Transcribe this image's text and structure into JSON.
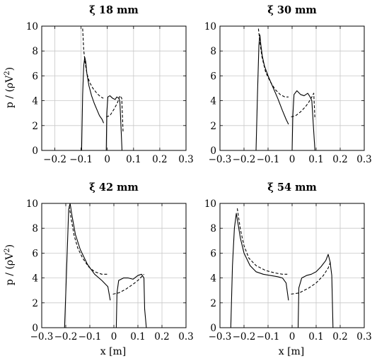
{
  "figure": {
    "ylabel_main": "p / (ρV",
    "ylabel_sup": "2",
    "ylabel_close": ")",
    "xlabel": "x [m]"
  },
  "chart_data": [
    {
      "type": "line",
      "title": "ξ 18 mm",
      "xlim": [
        -0.25,
        0.3
      ],
      "ylim": [
        0,
        10
      ],
      "xticks": [
        -0.2,
        -0.1,
        0,
        0.1,
        0.2,
        0.3
      ],
      "xtick_labels": [
        "−0.2",
        "−0.1",
        "0",
        "0.1",
        "0.2",
        "0.3"
      ],
      "yticks": [
        0,
        2,
        4,
        6,
        8,
        10
      ],
      "ytick_labels": [
        "0",
        "2",
        "4",
        "6",
        "8",
        "10"
      ],
      "grid": true,
      "series": [
        {
          "style": "solid",
          "segments": [
            [
              [
                -0.098,
                0
              ],
              [
                -0.094,
                4.5
              ],
              [
                -0.09,
                6.8
              ],
              [
                -0.086,
                7.5
              ],
              [
                -0.082,
                7.1
              ],
              [
                -0.078,
                6.2
              ],
              [
                -0.07,
                5.2
              ],
              [
                -0.06,
                4.4
              ],
              [
                -0.05,
                3.8
              ],
              [
                -0.04,
                3.3
              ],
              [
                -0.03,
                2.8
              ],
              [
                -0.02,
                2.5
              ],
              [
                -0.014,
                2.2
              ]
            ],
            [
              [
                -0.004,
                0
              ],
              [
                -0.002,
                3.0
              ],
              [
                0.002,
                4.3
              ],
              [
                0.01,
                4.4
              ],
              [
                0.02,
                4.2
              ],
              [
                0.03,
                4.1
              ],
              [
                0.036,
                4.3
              ],
              [
                0.044,
                4.2
              ],
              [
                0.048,
                3.9
              ],
              [
                0.052,
                2.0
              ],
              [
                0.056,
                0
              ]
            ]
          ]
        },
        {
          "style": "dashed",
          "segments": [
            [
              [
                -0.094,
                9.8
              ],
              [
                -0.09,
                8.1
              ],
              [
                -0.085,
                7.1
              ],
              [
                -0.078,
                6.2
              ],
              [
                -0.068,
                5.5
              ],
              [
                -0.055,
                5.0
              ],
              [
                -0.04,
                4.6
              ],
              [
                -0.025,
                4.3
              ],
              [
                -0.015,
                4.2
              ]
            ],
            [
              [
                -0.004,
                2.7
              ],
              [
                0.01,
                2.8
              ],
              [
                0.025,
                3.3
              ],
              [
                0.038,
                3.8
              ],
              [
                0.048,
                4.4
              ],
              [
                0.055,
                4.2
              ],
              [
                0.06,
                1.5
              ]
            ]
          ]
        }
      ]
    },
    {
      "type": "line",
      "title": "ξ 30 mm",
      "xlim": [
        -0.3,
        0.3
      ],
      "ylim": [
        0,
        10
      ],
      "xticks": [
        -0.3,
        -0.2,
        -0.1,
        0,
        0.1,
        0.2,
        0.3
      ],
      "xtick_labels": [
        "−0.3",
        "−0.2",
        "−0.1",
        "0",
        "0.1",
        "0.2",
        "0.3"
      ],
      "yticks": [
        0,
        2,
        4,
        6,
        8,
        10
      ],
      "ytick_labels": [
        "0",
        "2",
        "4",
        "6",
        "8",
        "10"
      ],
      "grid": true,
      "series": [
        {
          "style": "solid",
          "segments": [
            [
              [
                -0.15,
                0
              ],
              [
                -0.144,
                4.5
              ],
              [
                -0.138,
                8.5
              ],
              [
                -0.134,
                9.3
              ],
              [
                -0.13,
                8.5
              ],
              [
                -0.124,
                7.6
              ],
              [
                -0.115,
                6.8
              ],
              [
                -0.1,
                6.0
              ],
              [
                -0.08,
                5.1
              ],
              [
                -0.06,
                4.2
              ],
              [
                -0.04,
                3.2
              ],
              [
                -0.025,
                2.5
              ],
              [
                -0.015,
                2.1
              ]
            ],
            [
              [
                0.0,
                0
              ],
              [
                0.003,
                2.8
              ],
              [
                0.008,
                4.5
              ],
              [
                0.02,
                4.8
              ],
              [
                0.035,
                4.5
              ],
              [
                0.05,
                4.4
              ],
              [
                0.065,
                4.6
              ],
              [
                0.075,
                4.3
              ],
              [
                0.082,
                4.0
              ],
              [
                0.09,
                1.5
              ],
              [
                0.095,
                0
              ]
            ]
          ]
        },
        {
          "style": "dashed",
          "segments": [
            [
              [
                -0.14,
                9.8
              ],
              [
                -0.134,
                8.7
              ],
              [
                -0.125,
                7.5
              ],
              [
                -0.11,
                6.3
              ],
              [
                -0.09,
                5.5
              ],
              [
                -0.07,
                4.9
              ],
              [
                -0.05,
                4.5
              ],
              [
                -0.03,
                4.3
              ],
              [
                -0.015,
                4.3
              ]
            ],
            [
              [
                -0.004,
                2.7
              ],
              [
                0.015,
                2.8
              ],
              [
                0.035,
                3.1
              ],
              [
                0.055,
                3.5
              ],
              [
                0.07,
                3.9
              ],
              [
                0.082,
                4.3
              ],
              [
                0.09,
                4.6
              ],
              [
                0.095,
                2.5
              ]
            ]
          ]
        }
      ]
    },
    {
      "type": "line",
      "title": "ξ 42 mm",
      "xlim": [
        -0.3,
        0.3
      ],
      "ylim": [
        0,
        10
      ],
      "xticks": [
        -0.3,
        -0.2,
        -0.1,
        0,
        0.1,
        0.2,
        0.3
      ],
      "xtick_labels": [
        "−0.3",
        "−0.2",
        "−0.1",
        "0",
        "0.1",
        "0.2",
        "0.3"
      ],
      "yticks": [
        0,
        2,
        4,
        6,
        8,
        10
      ],
      "ytick_labels": [
        "0",
        "2",
        "4",
        "6",
        "8",
        "10"
      ],
      "grid": true,
      "series": [
        {
          "style": "solid",
          "segments": [
            [
              [
                -0.205,
                0
              ],
              [
                -0.196,
                5.0
              ],
              [
                -0.188,
                9.5
              ],
              [
                -0.182,
                10.0
              ],
              [
                -0.174,
                9.0
              ],
              [
                -0.16,
                7.5
              ],
              [
                -0.14,
                6.3
              ],
              [
                -0.11,
                5.1
              ],
              [
                -0.08,
                4.3
              ],
              [
                -0.05,
                3.8
              ],
              [
                -0.025,
                3.3
              ],
              [
                -0.015,
                2.2
              ]
            ],
            [
              [
                0.01,
                0
              ],
              [
                0.013,
                2.8
              ],
              [
                0.02,
                3.8
              ],
              [
                0.04,
                4.0
              ],
              [
                0.06,
                4.0
              ],
              [
                0.08,
                3.9
              ],
              [
                0.1,
                4.2
              ],
              [
                0.115,
                4.3
              ],
              [
                0.125,
                4.0
              ],
              [
                0.128,
                1.5
              ],
              [
                0.135,
                0
              ]
            ]
          ]
        },
        {
          "style": "dashed",
          "segments": [
            [
              [
                -0.186,
                9.8
              ],
              [
                -0.178,
                8.8
              ],
              [
                -0.165,
                7.4
              ],
              [
                -0.15,
                6.4
              ],
              [
                -0.13,
                5.6
              ],
              [
                -0.105,
                4.9
              ],
              [
                -0.08,
                4.5
              ],
              [
                -0.05,
                4.3
              ],
              [
                -0.025,
                4.3
              ]
            ],
            [
              [
                -0.004,
                2.7
              ],
              [
                0.02,
                2.8
              ],
              [
                0.05,
                3.1
              ],
              [
                0.08,
                3.5
              ],
              [
                0.1,
                3.8
              ],
              [
                0.115,
                4.1
              ],
              [
                0.125,
                4.3
              ]
            ]
          ]
        }
      ]
    },
    {
      "type": "line",
      "title": "ξ 54 mm",
      "xlim": [
        -0.3,
        0.3
      ],
      "ylim": [
        0,
        10
      ],
      "xticks": [
        -0.3,
        -0.2,
        -0.1,
        0,
        0.1,
        0.2,
        0.3
      ],
      "xtick_labels": [
        "−0.3",
        "−0.2",
        "−0.1",
        "0",
        "0.1",
        "0.2",
        "0.3"
      ],
      "yticks": [
        0,
        2,
        4,
        6,
        8,
        10
      ],
      "ytick_labels": [
        "0",
        "2",
        "4",
        "6",
        "8",
        "10"
      ],
      "grid": true,
      "series": [
        {
          "style": "solid",
          "segments": [
            [
              [
                -0.255,
                0
              ],
              [
                -0.248,
                5.0
              ],
              [
                -0.24,
                8.0
              ],
              [
                -0.232,
                9.2
              ],
              [
                -0.226,
                8.5
              ],
              [
                -0.215,
                7.2
              ],
              [
                -0.2,
                6.0
              ],
              [
                -0.175,
                5.0
              ],
              [
                -0.15,
                4.5
              ],
              [
                -0.12,
                4.3
              ],
              [
                -0.09,
                4.2
              ],
              [
                -0.06,
                4.1
              ],
              [
                -0.04,
                4.0
              ],
              [
                -0.025,
                3.6
              ],
              [
                -0.015,
                2.2
              ]
            ],
            [
              [
                0.025,
                0
              ],
              [
                0.028,
                3.2
              ],
              [
                0.04,
                4.0
              ],
              [
                0.06,
                4.2
              ],
              [
                0.08,
                4.3
              ],
              [
                0.1,
                4.5
              ],
              [
                0.12,
                4.9
              ],
              [
                0.14,
                5.4
              ],
              [
                0.15,
                5.9
              ],
              [
                0.158,
                5.3
              ],
              [
                0.165,
                4.2
              ],
              [
                0.17,
                0
              ]
            ]
          ]
        },
        {
          "style": "dashed",
          "segments": [
            [
              [
                -0.228,
                9.6
              ],
              [
                -0.215,
                7.9
              ],
              [
                -0.2,
                6.6
              ],
              [
                -0.18,
                5.6
              ],
              [
                -0.15,
                5.0
              ],
              [
                -0.11,
                4.6
              ],
              [
                -0.07,
                4.4
              ],
              [
                -0.04,
                4.3
              ],
              [
                -0.02,
                4.3
              ]
            ],
            [
              [
                -0.004,
                2.7
              ],
              [
                0.03,
                2.8
              ],
              [
                0.07,
                3.2
              ],
              [
                0.1,
                3.6
              ],
              [
                0.13,
                4.2
              ],
              [
                0.15,
                4.8
              ],
              [
                0.16,
                5.3
              ]
            ]
          ]
        }
      ]
    }
  ]
}
